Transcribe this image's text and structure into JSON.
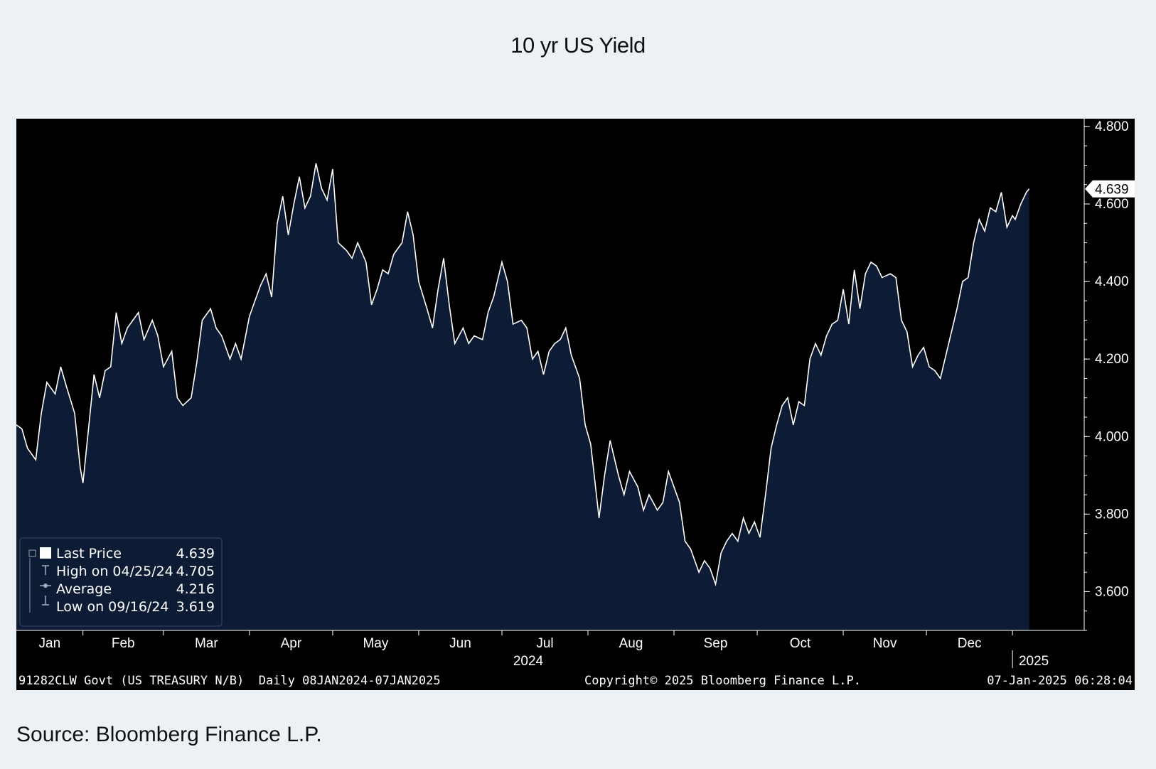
{
  "title": "10 yr US Yield",
  "source": "Source: Bloomberg Finance L.P.",
  "colors": {
    "page_bg": "#ecf1f5",
    "chart_bg": "#000000",
    "area_fill": "#0d1b35",
    "line": "#ffffff",
    "text": "#ffffff"
  },
  "footer": {
    "ticker": "91282CLW Govt (US TREASURY N/B)  Daily 08JAN2024-07JAN2025",
    "copyright": "Copyright© 2025 Bloomberg Finance L.P.",
    "timestamp": "07-Jan-2025 06:28:04"
  },
  "legend": {
    "rows": [
      {
        "label": "Last Price",
        "value": "4.639"
      },
      {
        "label": "High on 04/25/24",
        "value": "4.705"
      },
      {
        "label": "Average",
        "value": "4.216"
      },
      {
        "label": "Low on 09/16/24",
        "value": "3.619"
      }
    ]
  },
  "chart_data": {
    "type": "area",
    "title": "10 yr US Yield",
    "xlabel": "",
    "ylabel": "",
    "ylim": [
      3.5,
      4.82
    ],
    "y_ticks": [
      "4.800",
      "4.600",
      "4.400",
      "4.200",
      "4.000",
      "3.800",
      "3.600"
    ],
    "month_labels": [
      "Jan",
      "Feb",
      "Mar",
      "Apr",
      "May",
      "Jun",
      "Jul",
      "Aug",
      "Sep",
      "Oct",
      "Nov",
      "Dec"
    ],
    "year_labels": [
      "2024",
      "2025"
    ],
    "last_value_label": "4.639",
    "grid": false,
    "legend_position": "bottom-left",
    "series": [
      {
        "name": "Last Price",
        "points": [
          [
            "2024-01-08",
            4.03
          ],
          [
            "2024-01-10",
            4.02
          ],
          [
            "2024-01-12",
            3.97
          ],
          [
            "2024-01-15",
            3.94
          ],
          [
            "2024-01-17",
            4.06
          ],
          [
            "2024-01-19",
            4.14
          ],
          [
            "2024-01-22",
            4.11
          ],
          [
            "2024-01-24",
            4.18
          ],
          [
            "2024-01-26",
            4.13
          ],
          [
            "2024-01-29",
            4.06
          ],
          [
            "2024-01-31",
            3.92
          ],
          [
            "2024-02-01",
            3.88
          ],
          [
            "2024-02-03",
            4.02
          ],
          [
            "2024-02-05",
            4.16
          ],
          [
            "2024-02-07",
            4.1
          ],
          [
            "2024-02-09",
            4.17
          ],
          [
            "2024-02-11",
            4.18
          ],
          [
            "2024-02-13",
            4.32
          ],
          [
            "2024-02-15",
            4.24
          ],
          [
            "2024-02-17",
            4.28
          ],
          [
            "2024-02-19",
            4.3
          ],
          [
            "2024-02-21",
            4.32
          ],
          [
            "2024-02-23",
            4.25
          ],
          [
            "2024-02-26",
            4.3
          ],
          [
            "2024-02-28",
            4.26
          ],
          [
            "2024-03-01",
            4.18
          ],
          [
            "2024-03-04",
            4.22
          ],
          [
            "2024-03-06",
            4.1
          ],
          [
            "2024-03-08",
            4.08
          ],
          [
            "2024-03-11",
            4.1
          ],
          [
            "2024-03-13",
            4.19
          ],
          [
            "2024-03-15",
            4.3
          ],
          [
            "2024-03-18",
            4.33
          ],
          [
            "2024-03-20",
            4.28
          ],
          [
            "2024-03-22",
            4.26
          ],
          [
            "2024-03-25",
            4.2
          ],
          [
            "2024-03-27",
            4.24
          ],
          [
            "2024-03-29",
            4.2
          ],
          [
            "2024-04-01",
            4.31
          ],
          [
            "2024-04-03",
            4.35
          ],
          [
            "2024-04-05",
            4.39
          ],
          [
            "2024-04-07",
            4.42
          ],
          [
            "2024-04-09",
            4.36
          ],
          [
            "2024-04-11",
            4.55
          ],
          [
            "2024-04-13",
            4.62
          ],
          [
            "2024-04-15",
            4.52
          ],
          [
            "2024-04-17",
            4.6
          ],
          [
            "2024-04-19",
            4.67
          ],
          [
            "2024-04-21",
            4.59
          ],
          [
            "2024-04-23",
            4.62
          ],
          [
            "2024-04-25",
            4.705
          ],
          [
            "2024-04-27",
            4.64
          ],
          [
            "2024-04-29",
            4.61
          ],
          [
            "2024-05-01",
            4.69
          ],
          [
            "2024-05-03",
            4.5
          ],
          [
            "2024-05-06",
            4.48
          ],
          [
            "2024-05-08",
            4.46
          ],
          [
            "2024-05-10",
            4.5
          ],
          [
            "2024-05-13",
            4.45
          ],
          [
            "2024-05-15",
            4.34
          ],
          [
            "2024-05-17",
            4.38
          ],
          [
            "2024-05-19",
            4.43
          ],
          [
            "2024-05-21",
            4.42
          ],
          [
            "2024-05-23",
            4.47
          ],
          [
            "2024-05-26",
            4.5
          ],
          [
            "2024-05-28",
            4.58
          ],
          [
            "2024-05-30",
            4.52
          ],
          [
            "2024-06-01",
            4.4
          ],
          [
            "2024-06-04",
            4.33
          ],
          [
            "2024-06-06",
            4.28
          ],
          [
            "2024-06-08",
            4.38
          ],
          [
            "2024-06-10",
            4.46
          ],
          [
            "2024-06-12",
            4.34
          ],
          [
            "2024-06-14",
            4.24
          ],
          [
            "2024-06-17",
            4.28
          ],
          [
            "2024-06-19",
            4.24
          ],
          [
            "2024-06-21",
            4.26
          ],
          [
            "2024-06-24",
            4.25
          ],
          [
            "2024-06-26",
            4.32
          ],
          [
            "2024-06-28",
            4.36
          ],
          [
            "2024-07-01",
            4.45
          ],
          [
            "2024-07-03",
            4.4
          ],
          [
            "2024-07-05",
            4.29
          ],
          [
            "2024-07-08",
            4.3
          ],
          [
            "2024-07-10",
            4.28
          ],
          [
            "2024-07-12",
            4.2
          ],
          [
            "2024-07-14",
            4.22
          ],
          [
            "2024-07-16",
            4.16
          ],
          [
            "2024-07-18",
            4.22
          ],
          [
            "2024-07-20",
            4.24
          ],
          [
            "2024-07-22",
            4.25
          ],
          [
            "2024-07-24",
            4.28
          ],
          [
            "2024-07-26",
            4.21
          ],
          [
            "2024-07-29",
            4.15
          ],
          [
            "2024-07-31",
            4.03
          ],
          [
            "2024-08-02",
            3.98
          ],
          [
            "2024-08-05",
            3.79
          ],
          [
            "2024-08-07",
            3.9
          ],
          [
            "2024-08-09",
            3.99
          ],
          [
            "2024-08-12",
            3.9
          ],
          [
            "2024-08-14",
            3.85
          ],
          [
            "2024-08-16",
            3.91
          ],
          [
            "2024-08-19",
            3.87
          ],
          [
            "2024-08-21",
            3.81
          ],
          [
            "2024-08-23",
            3.85
          ],
          [
            "2024-08-26",
            3.81
          ],
          [
            "2024-08-28",
            3.83
          ],
          [
            "2024-08-30",
            3.91
          ],
          [
            "2024-09-03",
            3.83
          ],
          [
            "2024-09-05",
            3.73
          ],
          [
            "2024-09-07",
            3.71
          ],
          [
            "2024-09-10",
            3.65
          ],
          [
            "2024-09-12",
            3.68
          ],
          [
            "2024-09-14",
            3.66
          ],
          [
            "2024-09-16",
            3.619
          ],
          [
            "2024-09-18",
            3.7
          ],
          [
            "2024-09-20",
            3.73
          ],
          [
            "2024-09-22",
            3.75
          ],
          [
            "2024-09-24",
            3.73
          ],
          [
            "2024-09-26",
            3.79
          ],
          [
            "2024-09-28",
            3.75
          ],
          [
            "2024-09-30",
            3.78
          ],
          [
            "2024-10-02",
            3.74
          ],
          [
            "2024-10-04",
            3.85
          ],
          [
            "2024-10-06",
            3.97
          ],
          [
            "2024-10-08",
            4.03
          ],
          [
            "2024-10-10",
            4.08
          ],
          [
            "2024-10-12",
            4.1
          ],
          [
            "2024-10-14",
            4.03
          ],
          [
            "2024-10-16",
            4.09
          ],
          [
            "2024-10-18",
            4.08
          ],
          [
            "2024-10-20",
            4.2
          ],
          [
            "2024-10-22",
            4.24
          ],
          [
            "2024-10-24",
            4.21
          ],
          [
            "2024-10-26",
            4.26
          ],
          [
            "2024-10-28",
            4.29
          ],
          [
            "2024-10-30",
            4.3
          ],
          [
            "2024-11-01",
            4.38
          ],
          [
            "2024-11-03",
            4.29
          ],
          [
            "2024-11-05",
            4.43
          ],
          [
            "2024-11-07",
            4.33
          ],
          [
            "2024-11-09",
            4.42
          ],
          [
            "2024-11-11",
            4.45
          ],
          [
            "2024-11-13",
            4.44
          ],
          [
            "2024-11-15",
            4.41
          ],
          [
            "2024-11-18",
            4.42
          ],
          [
            "2024-11-20",
            4.41
          ],
          [
            "2024-11-22",
            4.3
          ],
          [
            "2024-11-24",
            4.27
          ],
          [
            "2024-11-26",
            4.18
          ],
          [
            "2024-11-28",
            4.21
          ],
          [
            "2024-11-30",
            4.23
          ],
          [
            "2024-12-02",
            4.18
          ],
          [
            "2024-12-04",
            4.17
          ],
          [
            "2024-12-06",
            4.15
          ],
          [
            "2024-12-08",
            4.21
          ],
          [
            "2024-12-10",
            4.27
          ],
          [
            "2024-12-12",
            4.33
          ],
          [
            "2024-12-14",
            4.4
          ],
          [
            "2024-12-16",
            4.41
          ],
          [
            "2024-12-18",
            4.5
          ],
          [
            "2024-12-20",
            4.56
          ],
          [
            "2024-12-22",
            4.53
          ],
          [
            "2024-12-24",
            4.59
          ],
          [
            "2024-12-26",
            4.58
          ],
          [
            "2024-12-28",
            4.63
          ],
          [
            "2024-12-30",
            4.54
          ],
          [
            "2025-01-01",
            4.57
          ],
          [
            "2025-01-02",
            4.56
          ],
          [
            "2025-01-04",
            4.6
          ],
          [
            "2025-01-06",
            4.63
          ],
          [
            "2025-01-07",
            4.639
          ]
        ]
      }
    ]
  }
}
